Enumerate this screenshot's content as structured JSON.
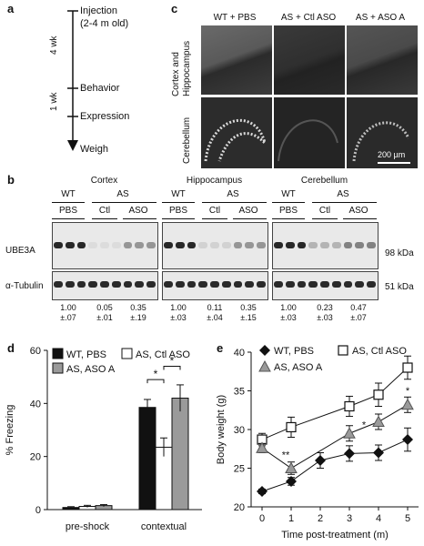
{
  "panel_a": {
    "letter": "a",
    "steps": [
      "Injection",
      "(2-4 m old)",
      "Behavior",
      "Expression",
      "Weigh"
    ],
    "intervals": [
      "4 wk",
      "1 wk"
    ]
  },
  "panel_c": {
    "letter": "c",
    "columns": [
      "WT + PBS",
      "AS + Ctl ASO",
      "AS + ASO A"
    ],
    "rows": [
      "Cortex and Hippocampus",
      "Cerebellum"
    ],
    "scale_bar": "200 µm"
  },
  "panel_b": {
    "letter": "b",
    "regions": [
      {
        "name": "Cortex",
        "quant": [
          "1.00",
          "±.07",
          "0.05",
          "±.01",
          "0.35",
          "±.19"
        ]
      },
      {
        "name": "Hippocampus",
        "quant": [
          "1.00",
          "±.03",
          "0.11",
          "±.04",
          "0.35",
          "±.15"
        ]
      },
      {
        "name": "Cerebellum",
        "quant": [
          "1.00",
          "±.03",
          "0.23",
          "±.03",
          "0.47",
          "±.07"
        ]
      }
    ],
    "genotypes": [
      "WT",
      "AS"
    ],
    "treatments": [
      "PBS",
      "Ctl",
      "ASO"
    ],
    "proteins": [
      "UBE3A",
      "α-Tubulin"
    ],
    "sizes": [
      "98 kDa",
      "51 kDa"
    ]
  },
  "panel_d": {
    "letter": "d",
    "chart_data": {
      "type": "bar",
      "categories": [
        "pre-shock",
        "contextual"
      ],
      "series": [
        {
          "name": "WT, PBS",
          "color": "#111111",
          "values": [
            0.8,
            38.5
          ],
          "errors": [
            0.3,
            3
          ]
        },
        {
          "name": "AS, Ctl ASO",
          "color": "#ffffff",
          "values": [
            1.2,
            23.5
          ],
          "errors": [
            0.4,
            3.5
          ]
        },
        {
          "name": "AS, ASO A",
          "color": "#9a9a9a",
          "values": [
            1.5,
            42
          ],
          "errors": [
            0.4,
            5
          ]
        }
      ],
      "ylabel": "% Freezing",
      "ylim": [
        0,
        60
      ],
      "yticks": [
        "0",
        "20",
        "40",
        "60"
      ],
      "significance": [
        "*",
        "*"
      ],
      "legend": "top-left"
    }
  },
  "panel_e": {
    "letter": "e",
    "chart_data": {
      "type": "line",
      "x": [
        0,
        1,
        2,
        3,
        4,
        5
      ],
      "xticks": [
        "0",
        "1",
        "2",
        "3",
        "4",
        "5"
      ],
      "series": [
        {
          "name": "WT, PBS",
          "marker": "diamond",
          "y": [
            22,
            23.3,
            26,
            26.9,
            27,
            28.7
          ],
          "err": [
            0.3,
            0.5,
            1,
            1,
            1,
            1.5
          ]
        },
        {
          "name": "AS, Ctl ASO",
          "marker": "square",
          "y": [
            28.7,
            30.3,
            33,
            34.5,
            38
          ],
          "x": [
            0,
            1,
            3,
            4,
            5
          ],
          "err": [
            0.8,
            1.3,
            1.3,
            1.5,
            1.5
          ]
        },
        {
          "name": "AS, ASO A",
          "marker": "triangle",
          "y": [
            27.6,
            25,
            29.5,
            31,
            33.2
          ],
          "x": [
            0,
            1,
            3,
            4,
            5
          ],
          "err": [
            0.6,
            0.8,
            1,
            1,
            1
          ]
        }
      ],
      "xlabel": "Time post-treatment (m)",
      "ylabel": "Body weight (g)",
      "ylim": [
        20,
        40
      ],
      "yticks": [
        "20",
        "25",
        "30",
        "35",
        "40"
      ],
      "significance": [
        "**",
        "*",
        "*"
      ],
      "legend": "top"
    }
  }
}
